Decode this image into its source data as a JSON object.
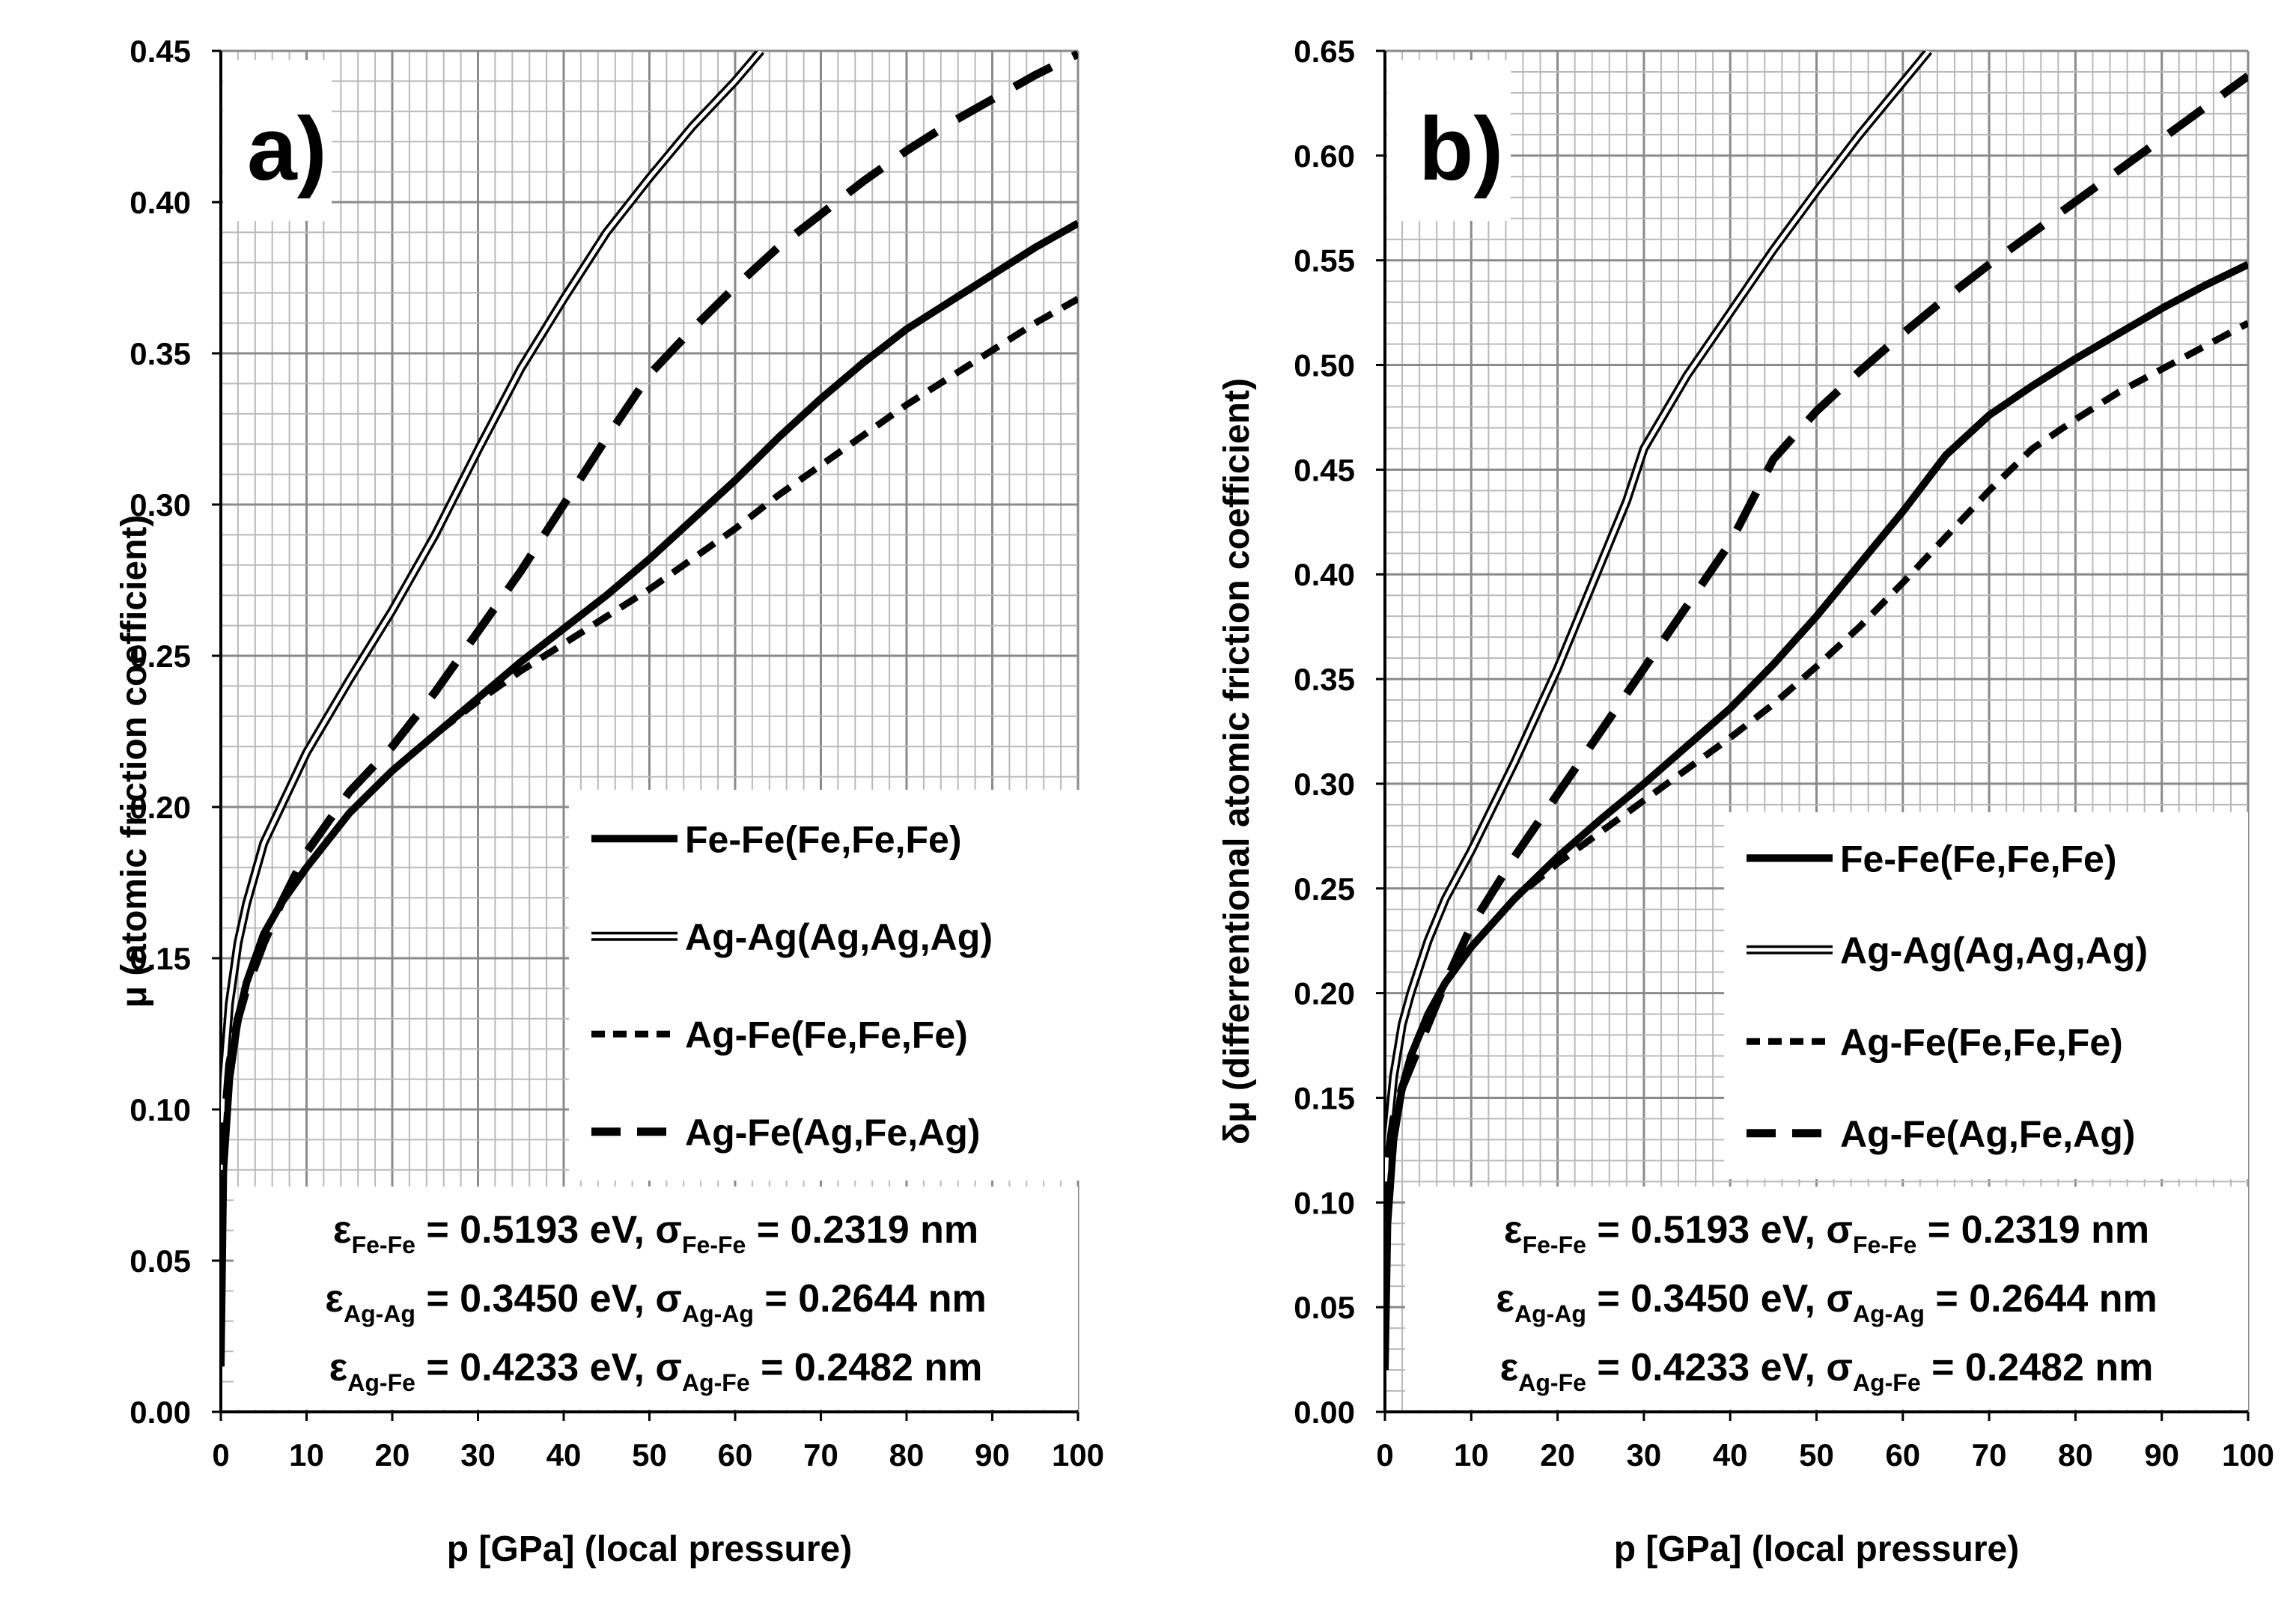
{
  "chart_data": [
    {
      "type": "line",
      "panel_label": "a)",
      "xlabel": "p [GPa]   (local pressure)",
      "ylabel": "μ  (atomic friction coefficient)",
      "xlim": [
        0,
        100
      ],
      "ylim": [
        0,
        0.45
      ],
      "xticks": [
        "0",
        "10",
        "20",
        "30",
        "40",
        "50",
        "60",
        "70",
        "80",
        "90",
        "100"
      ],
      "yticks": [
        "0.00",
        "0.05",
        "0.10",
        "0.15",
        "0.20",
        "0.25",
        "0.30",
        "0.35",
        "0.40",
        "0.45"
      ],
      "grid": true,
      "legend_position": "right-middle",
      "series": [
        {
          "name": "Fe-Fe(Fe,Fe,Fe)",
          "style": "thick-solid",
          "x": [
            0,
            0.3,
            1,
            2,
            3,
            5,
            7,
            10,
            15,
            20,
            25,
            30,
            35,
            40,
            45,
            50,
            55,
            60,
            65,
            70,
            75,
            80,
            85,
            90,
            95,
            100
          ],
          "y": [
            0.015,
            0.08,
            0.11,
            0.13,
            0.142,
            0.158,
            0.168,
            0.18,
            0.198,
            0.212,
            0.224,
            0.236,
            0.248,
            0.259,
            0.27,
            0.282,
            0.295,
            0.308,
            0.322,
            0.335,
            0.347,
            0.358,
            0.367,
            0.376,
            0.385,
            0.393
          ]
        },
        {
          "name": "Ag-Ag(Ag,Ag,Ag)",
          "style": "double-line",
          "x": [
            0,
            0.3,
            1,
            2,
            3,
            5,
            7,
            10,
            15,
            20,
            25,
            30,
            35,
            40,
            45,
            50,
            55,
            60,
            63
          ],
          "y": [
            0.08,
            0.11,
            0.135,
            0.155,
            0.168,
            0.188,
            0.2,
            0.218,
            0.242,
            0.265,
            0.29,
            0.318,
            0.345,
            0.368,
            0.39,
            0.408,
            0.425,
            0.44,
            0.45
          ]
        },
        {
          "name": "Ag-Fe(Fe,Fe,Fe)",
          "style": "short-dash",
          "x": [
            0,
            0.3,
            1,
            2,
            3,
            5,
            7,
            10,
            15,
            20,
            25,
            30,
            35,
            40,
            45,
            50,
            55,
            60,
            65,
            70,
            75,
            80,
            85,
            90,
            95,
            100
          ],
          "y": [
            0.02,
            0.08,
            0.11,
            0.13,
            0.142,
            0.158,
            0.168,
            0.18,
            0.198,
            0.212,
            0.224,
            0.235,
            0.245,
            0.254,
            0.263,
            0.272,
            0.282,
            0.292,
            0.303,
            0.313,
            0.323,
            0.333,
            0.342,
            0.351,
            0.36,
            0.368
          ]
        },
        {
          "name": "Ag-Fe(Ag,Fe,Ag)",
          "style": "long-dash",
          "x": [
            0,
            0.3,
            1,
            2,
            3,
            5,
            7,
            10,
            15,
            20,
            25,
            30,
            35,
            40,
            45,
            50,
            55,
            60,
            65,
            70,
            75,
            80,
            85,
            90,
            95,
            100
          ],
          "y": [
            0.06,
            0.09,
            0.115,
            0.13,
            0.14,
            0.155,
            0.168,
            0.185,
            0.205,
            0.22,
            0.238,
            0.258,
            0.278,
            0.3,
            0.322,
            0.343,
            0.358,
            0.372,
            0.385,
            0.396,
            0.407,
            0.417,
            0.426,
            0.434,
            0.442,
            0.449
          ]
        }
      ],
      "params": [
        {
          "sym": "ε",
          "sub": "Fe-Fe",
          "eps_val": " = 0.5193 eV, ",
          "sig": "σ",
          "sub2": "Fe-Fe",
          "sig_val": " = 0.2319 nm"
        },
        {
          "sym": "ε",
          "sub": "Ag-Ag",
          "eps_val": " = 0.3450 eV, ",
          "sig": "σ",
          "sub2": "Ag-Ag",
          "sig_val": " = 0.2644 nm"
        },
        {
          "sym": "ε",
          "sub": "Ag-Fe",
          "eps_val": " = 0.4233 eV, ",
          "sig": "σ",
          "sub2": "Ag-Fe",
          "sig_val": " = 0.2482 nm"
        }
      ]
    },
    {
      "type": "line",
      "panel_label": "b)",
      "xlabel": "p [GPa]   (local pressure)",
      "ylabel": "δμ  (differrentional atomic friction coefficient)",
      "xlim": [
        0,
        100
      ],
      "ylim": [
        0,
        0.65
      ],
      "xticks": [
        "0",
        "10",
        "20",
        "30",
        "40",
        "50",
        "60",
        "70",
        "80",
        "90",
        "100"
      ],
      "yticks": [
        "0.00",
        "0.05",
        "0.10",
        "0.15",
        "0.20",
        "0.25",
        "0.30",
        "0.35",
        "0.40",
        "0.45",
        "0.50",
        "0.55",
        "0.60",
        "0.65"
      ],
      "grid": true,
      "legend_position": "right-middle",
      "series": [
        {
          "name": "Fe-Fe(Fe,Fe,Fe)",
          "style": "thick-solid",
          "x": [
            0,
            0.3,
            1,
            2,
            3,
            5,
            7,
            10,
            15,
            20,
            25,
            30,
            35,
            40,
            45,
            50,
            55,
            60,
            65,
            70,
            75,
            80,
            85,
            90,
            95,
            100
          ],
          "y": [
            0.02,
            0.09,
            0.13,
            0.155,
            0.17,
            0.19,
            0.205,
            0.222,
            0.245,
            0.265,
            0.283,
            0.3,
            0.318,
            0.336,
            0.357,
            0.38,
            0.405,
            0.43,
            0.457,
            0.476,
            0.49,
            0.503,
            0.515,
            0.527,
            0.538,
            0.548
          ]
        },
        {
          "name": "Ag-Ag(Ag,Ag,Ag)",
          "style": "double-line",
          "x": [
            0,
            0.3,
            1,
            2,
            3,
            5,
            7,
            10,
            15,
            20,
            25,
            28,
            30,
            35,
            40,
            45,
            50,
            55,
            60,
            63
          ],
          "y": [
            0.1,
            0.13,
            0.16,
            0.185,
            0.2,
            0.225,
            0.245,
            0.268,
            0.31,
            0.355,
            0.405,
            0.435,
            0.46,
            0.495,
            0.525,
            0.555,
            0.583,
            0.61,
            0.635,
            0.65
          ]
        },
        {
          "name": "Ag-Fe(Fe,Fe,Fe)",
          "style": "short-dash",
          "x": [
            0,
            0.3,
            1,
            2,
            3,
            5,
            7,
            10,
            15,
            20,
            25,
            30,
            35,
            40,
            45,
            50,
            55,
            60,
            65,
            70,
            75,
            80,
            85,
            90,
            95,
            100
          ],
          "y": [
            0.03,
            0.09,
            0.13,
            0.155,
            0.17,
            0.19,
            0.205,
            0.222,
            0.245,
            0.262,
            0.277,
            0.292,
            0.307,
            0.322,
            0.338,
            0.356,
            0.375,
            0.396,
            0.418,
            0.44,
            0.46,
            0.474,
            0.487,
            0.498,
            0.509,
            0.52
          ]
        },
        {
          "name": "Ag-Fe(Ag,Fe,Ag)",
          "style": "long-dash",
          "x": [
            0,
            0.3,
            1,
            2,
            3,
            5,
            7,
            10,
            15,
            20,
            25,
            30,
            35,
            40,
            45,
            50,
            55,
            60,
            65,
            70,
            75,
            80,
            85,
            90,
            95,
            100
          ],
          "y": [
            0.09,
            0.12,
            0.14,
            0.155,
            0.165,
            0.185,
            0.205,
            0.232,
            0.265,
            0.295,
            0.325,
            0.355,
            0.385,
            0.415,
            0.455,
            0.478,
            0.497,
            0.515,
            0.532,
            0.548,
            0.563,
            0.578,
            0.593,
            0.608,
            0.623,
            0.638
          ]
        }
      ],
      "params": [
        {
          "sym": "ε",
          "sub": "Fe-Fe",
          "eps_val": " = 0.5193 eV, ",
          "sig": "σ",
          "sub2": "Fe-Fe",
          "sig_val": " = 0.2319 nm"
        },
        {
          "sym": "ε",
          "sub": "Ag-Ag",
          "eps_val": " = 0.3450 eV, ",
          "sig": "σ",
          "sub2": "Ag-Ag",
          "sig_val": " = 0.2644 nm"
        },
        {
          "sym": "ε",
          "sub": "Ag-Fe",
          "eps_val": " = 0.4233 eV, ",
          "sig": "σ",
          "sub2": "Ag-Fe",
          "sig_val": " = 0.2482 nm"
        }
      ]
    }
  ]
}
